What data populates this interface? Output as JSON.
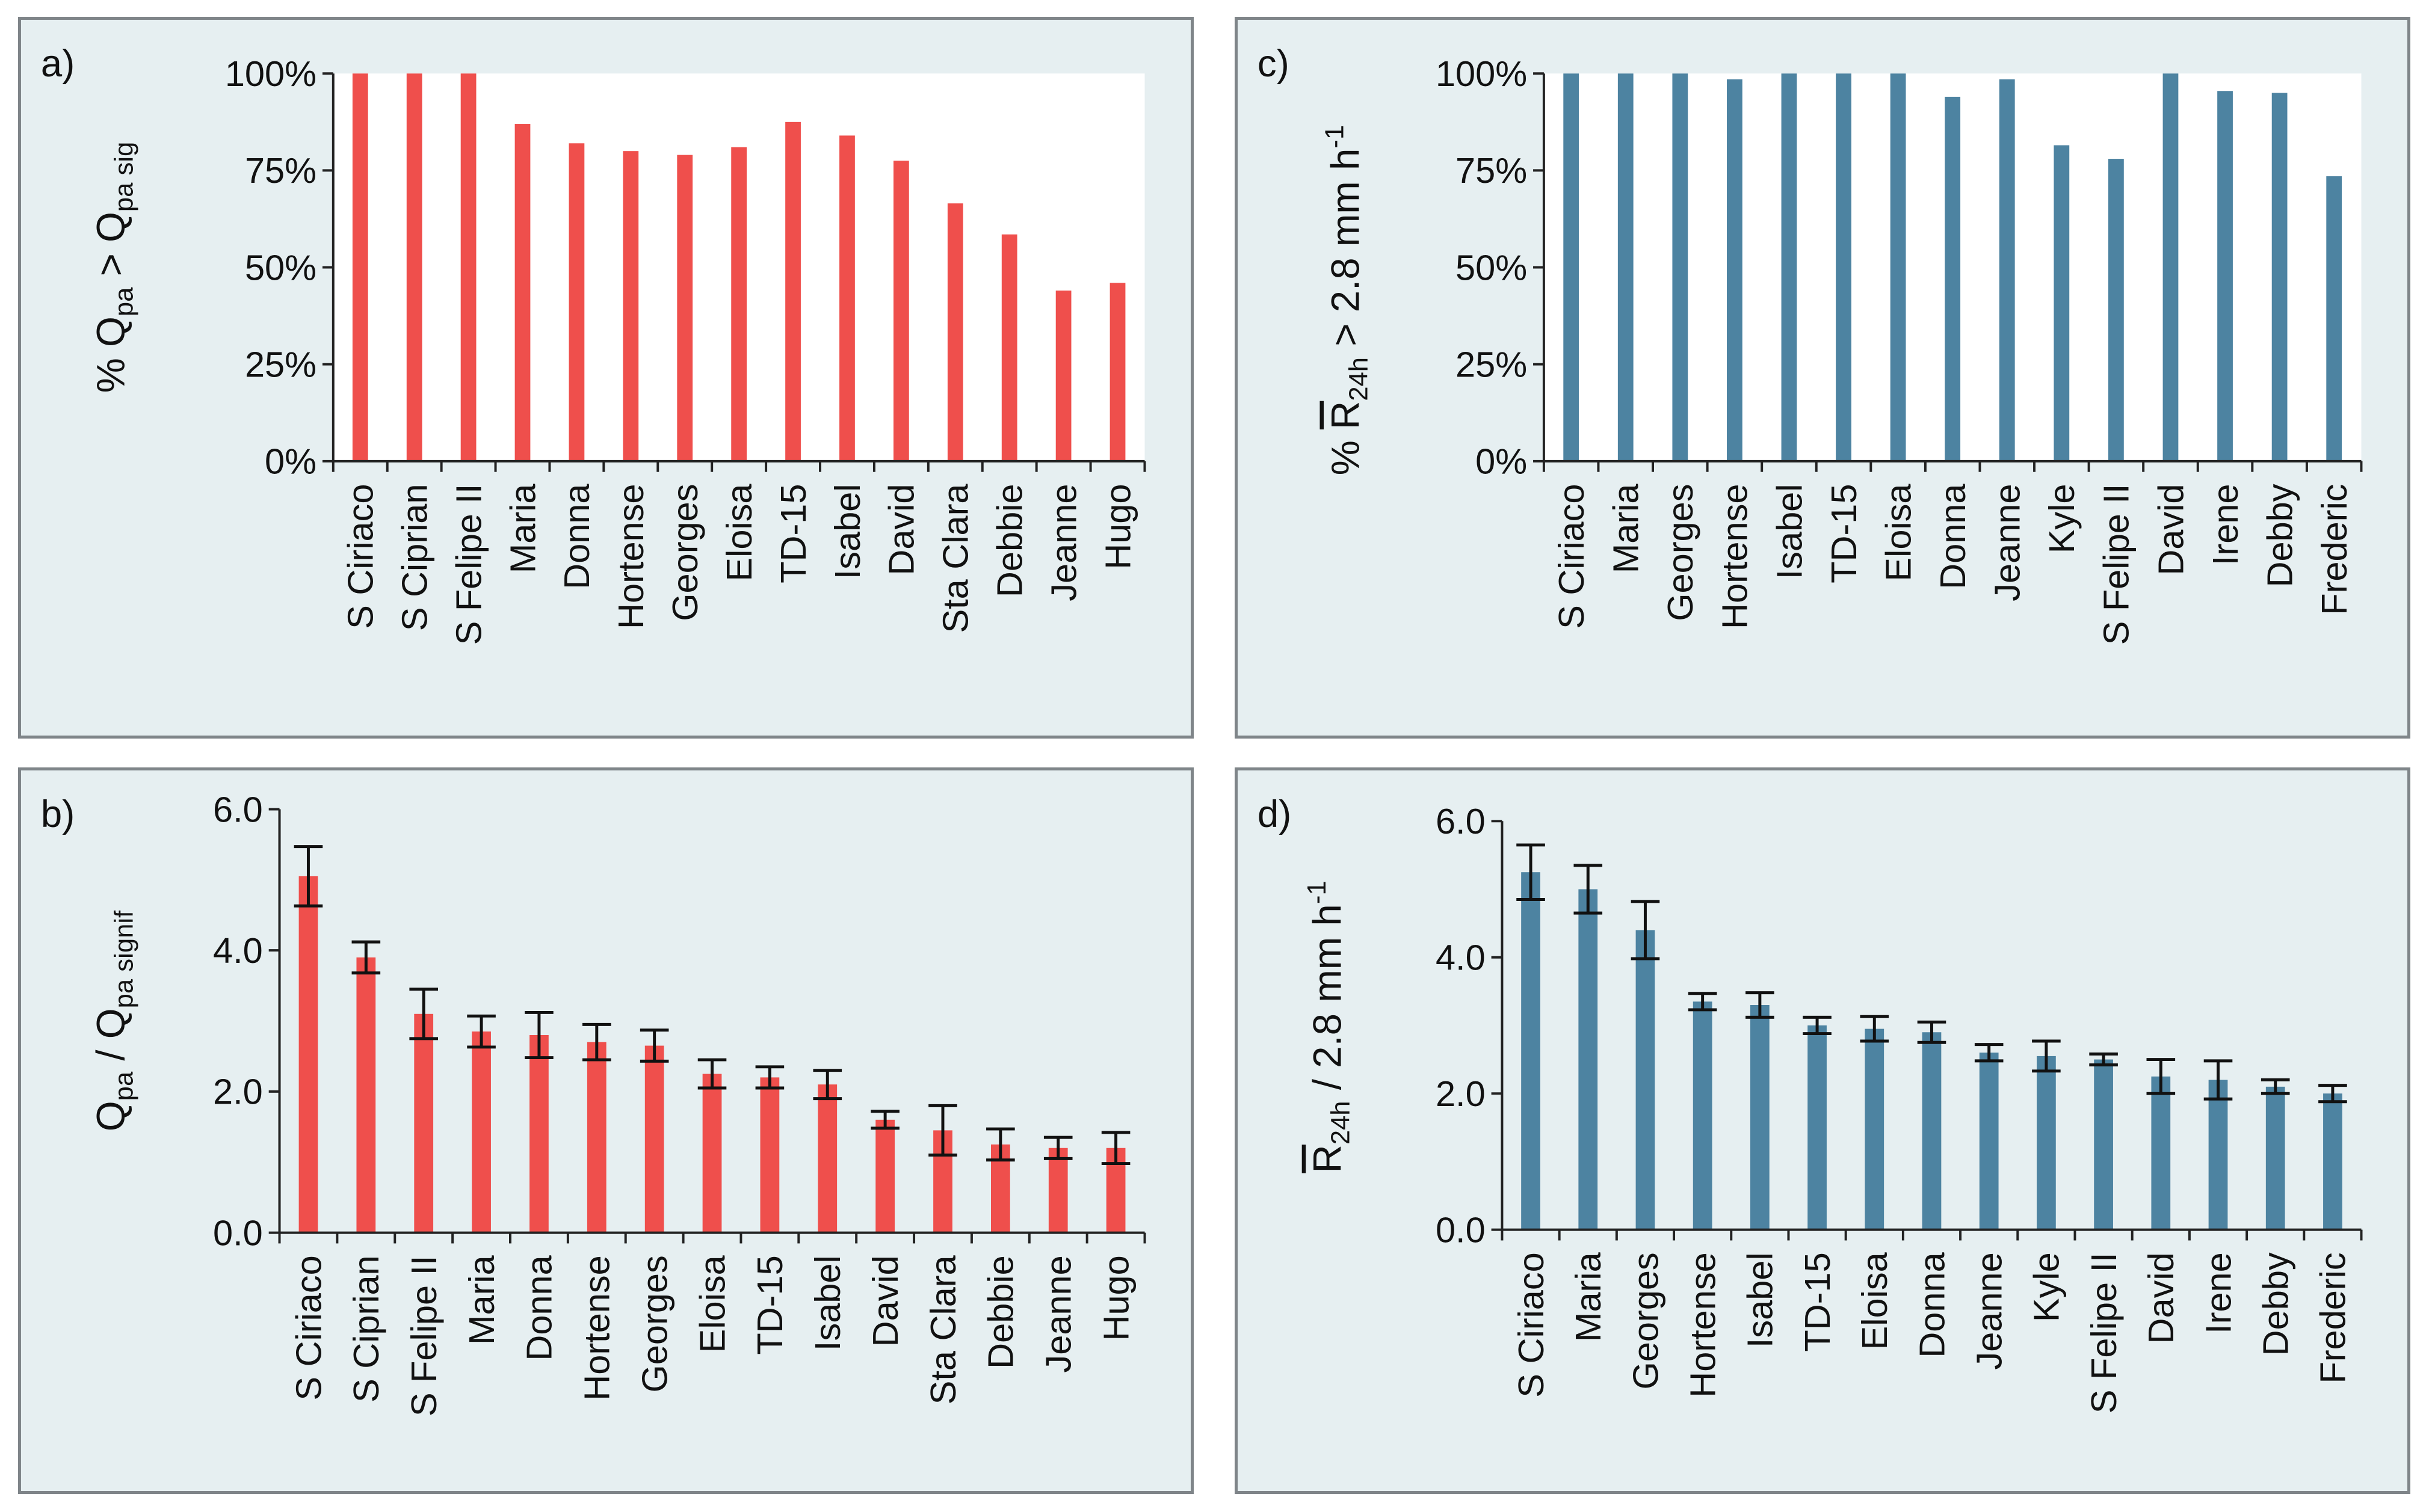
{
  "chart_data": [
    {
      "id": "a",
      "type": "bar",
      "panel_label": "a)",
      "title": "",
      "ylabel_parts": [
        {
          "text": "% Q"
        },
        {
          "text": "pa",
          "style": "sub"
        },
        {
          "text": " > Q"
        },
        {
          "text": "pa sig",
          "style": "sub"
        }
      ],
      "ylim": [
        0,
        100
      ],
      "yticks": [
        0,
        25,
        50,
        75,
        100
      ],
      "ytick_labels": [
        "0%",
        "25%",
        "50%",
        "75%",
        "100%"
      ],
      "categories": [
        "S Ciriaco",
        "S Ciprian",
        "S Felipe II",
        "Maria",
        "Donna",
        "Hortense",
        "Georges",
        "Eloisa",
        "TD-15",
        "Isabel",
        "David",
        "Sta Clara",
        "Debbie",
        "Jeanne",
        "Hugo"
      ],
      "values": [
        100,
        100,
        100,
        87,
        82,
        80,
        79,
        81,
        87.5,
        84,
        77.5,
        66.5,
        58.5,
        44,
        46
      ],
      "color": "#ef4f4c",
      "plot_bg": "#ffffff"
    },
    {
      "id": "b",
      "type": "bar",
      "panel_label": "b)",
      "title": "",
      "ylabel_parts": [
        {
          "text": "Q"
        },
        {
          "text": "pa",
          "style": "sub"
        },
        {
          "text": " / Q"
        },
        {
          "text": "pa signif",
          "style": "sub"
        }
      ],
      "ylim": [
        0,
        6
      ],
      "yticks": [
        0,
        2,
        4,
        6
      ],
      "ytick_labels": [
        "0.0",
        "2.0",
        "4.0",
        "6.0"
      ],
      "categories": [
        "S Ciriaco",
        "S Ciprian",
        "S Felipe II",
        "Maria",
        "Donna",
        "Hortense",
        "Georges",
        "Eloisa",
        "TD-15",
        "Isabel",
        "David",
        "Sta Clara",
        "Debbie",
        "Jeanne",
        "Hugo"
      ],
      "values": [
        5.05,
        3.9,
        3.1,
        2.85,
        2.8,
        2.7,
        2.65,
        2.25,
        2.2,
        2.1,
        1.6,
        1.45,
        1.25,
        1.2,
        1.2
      ],
      "errors": [
        0.42,
        0.22,
        0.35,
        0.22,
        0.32,
        0.25,
        0.22,
        0.2,
        0.15,
        0.2,
        0.12,
        0.35,
        0.22,
        0.15,
        0.22
      ],
      "color": "#ef4f4c",
      "plot_bg": "#e6eff1"
    },
    {
      "id": "c",
      "type": "bar",
      "panel_label": "c)",
      "title": "",
      "ylabel_parts": [
        {
          "text": "% "
        },
        {
          "text": "R",
          "style": "overline"
        },
        {
          "text": "24h",
          "style": "sub"
        },
        {
          "text": " > 2.8 mm h"
        },
        {
          "text": "-1",
          "style": "sup"
        }
      ],
      "ylim": [
        0,
        100
      ],
      "yticks": [
        0,
        25,
        50,
        75,
        100
      ],
      "ytick_labels": [
        "0%",
        "25%",
        "50%",
        "75%",
        "100%"
      ],
      "categories": [
        "S Ciriaco",
        "Maria",
        "Georges",
        "Hortense",
        "Isabel",
        "TD-15",
        "Eloisa",
        "Donna",
        "Jeanne",
        "Kyle",
        "S Felipe II",
        "David",
        "Irene",
        "Debby",
        "Frederic"
      ],
      "values": [
        100,
        100,
        100,
        98.5,
        100,
        100,
        100,
        94,
        98.5,
        81.5,
        78,
        100,
        95.5,
        95,
        73.5
      ],
      "color": "#4d83a1",
      "plot_bg": "#ffffff"
    },
    {
      "id": "d",
      "type": "bar",
      "panel_label": "d)",
      "title": "",
      "ylabel_parts": [
        {
          "text": "R",
          "style": "overline"
        },
        {
          "text": "24h",
          "style": "sub"
        },
        {
          "text": " / 2.8 mm h"
        },
        {
          "text": "-1",
          "style": "sup"
        }
      ],
      "ylim": [
        0,
        6
      ],
      "yticks": [
        0,
        2,
        4,
        6
      ],
      "ytick_labels": [
        "0.0",
        "2.0",
        "4.0",
        "6.0"
      ],
      "categories": [
        "S Ciriaco",
        "Maria",
        "Georges",
        "Hortense",
        "Isabel",
        "TD-15",
        "Eloisa",
        "Donna",
        "Jeanne",
        "Kyle",
        "S Felipe II",
        "David",
        "Irene",
        "Debby",
        "Frederic"
      ],
      "values": [
        5.25,
        5.0,
        4.4,
        3.35,
        3.3,
        3.0,
        2.95,
        2.9,
        2.6,
        2.55,
        2.5,
        2.25,
        2.2,
        2.1,
        2.0
      ],
      "errors": [
        0.4,
        0.35,
        0.42,
        0.12,
        0.18,
        0.12,
        0.18,
        0.15,
        0.12,
        0.22,
        0.08,
        0.25,
        0.28,
        0.1,
        0.12
      ],
      "color": "#4d83a1",
      "plot_bg": "#e6eff1"
    }
  ]
}
